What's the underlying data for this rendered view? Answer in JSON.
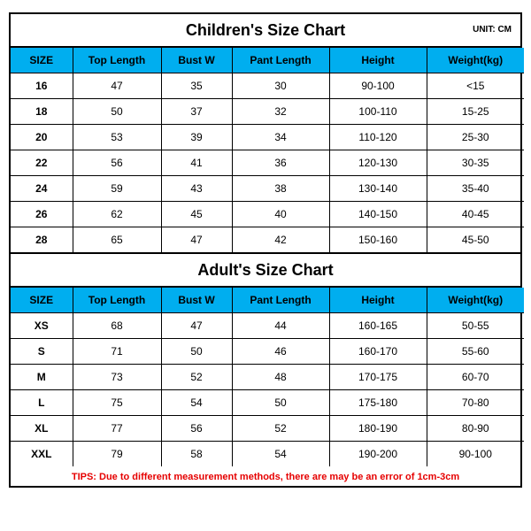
{
  "unit_label": "UNIT: CM",
  "header_bg": "#00aeef",
  "border_color": "#000000",
  "tips_color": "#e60000",
  "children": {
    "title": "Children's Size Chart",
    "columns": [
      "SIZE",
      "Top Length",
      "Bust W",
      "Pant Length",
      "Height",
      "Weight(kg)"
    ],
    "rows": [
      [
        "16",
        "47",
        "35",
        "30",
        "90-100",
        "<15"
      ],
      [
        "18",
        "50",
        "37",
        "32",
        "100-110",
        "15-25"
      ],
      [
        "20",
        "53",
        "39",
        "34",
        "110-120",
        "25-30"
      ],
      [
        "22",
        "56",
        "41",
        "36",
        "120-130",
        "30-35"
      ],
      [
        "24",
        "59",
        "43",
        "38",
        "130-140",
        "35-40"
      ],
      [
        "26",
        "62",
        "45",
        "40",
        "140-150",
        "40-45"
      ],
      [
        "28",
        "65",
        "47",
        "42",
        "150-160",
        "45-50"
      ]
    ]
  },
  "adult": {
    "title": "Adult's Size Chart",
    "columns": [
      "SIZE",
      "Top Length",
      "Bust W",
      "Pant Length",
      "Height",
      "Weight(kg)"
    ],
    "rows": [
      [
        "XS",
        "68",
        "47",
        "44",
        "160-165",
        "50-55"
      ],
      [
        "S",
        "71",
        "50",
        "46",
        "160-170",
        "55-60"
      ],
      [
        "M",
        "73",
        "52",
        "48",
        "170-175",
        "60-70"
      ],
      [
        "L",
        "75",
        "54",
        "50",
        "175-180",
        "70-80"
      ],
      [
        "XL",
        "77",
        "56",
        "52",
        "180-190",
        "80-90"
      ],
      [
        "XXL",
        "79",
        "58",
        "54",
        "190-200",
        "90-100"
      ]
    ]
  },
  "tips": "TIPS: Due to different measurement methods, there are may be an error of 1cm-3cm"
}
